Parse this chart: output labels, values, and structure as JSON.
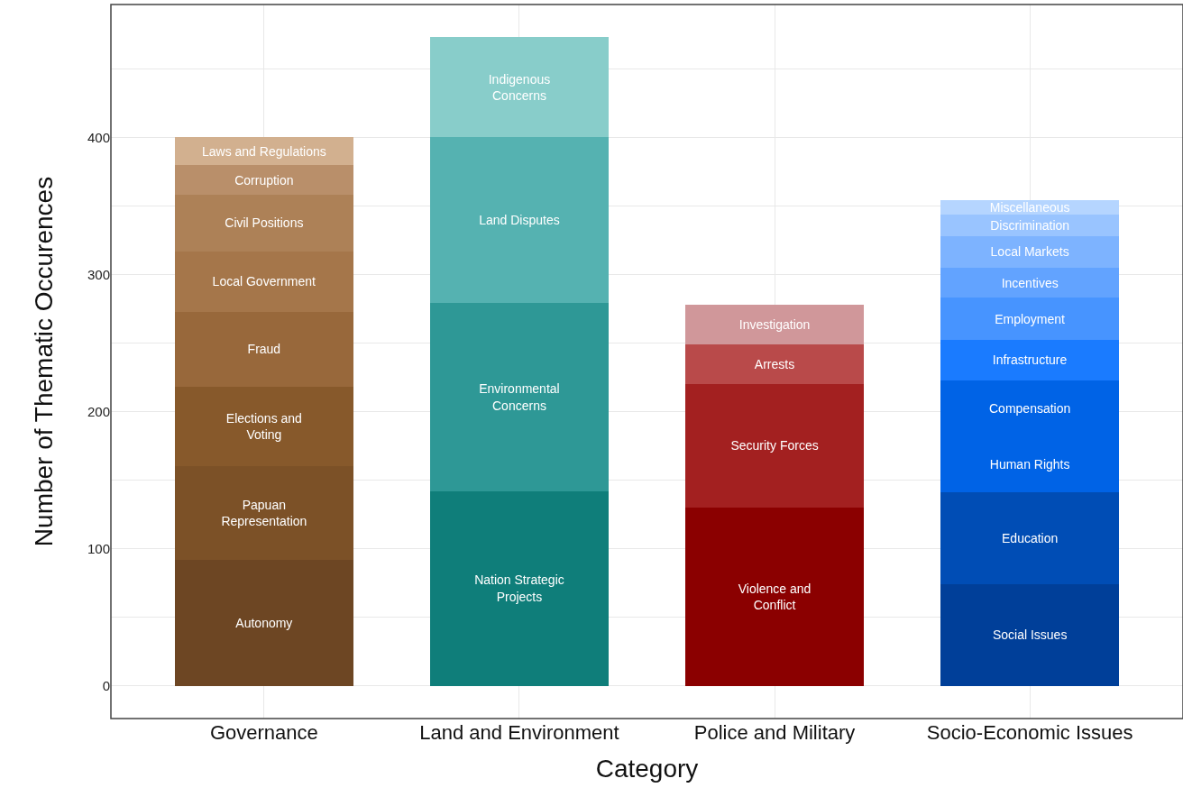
{
  "chart_data": {
    "type": "bar",
    "stacked": true,
    "xlabel": "Category",
    "ylabel": "Number of Thematic Occurences",
    "categories": [
      "Governance",
      "Land and Environment",
      "Police and Military",
      "Socio-Economic Issues"
    ],
    "ylim": [
      -24,
      497
    ],
    "yticks": [
      0,
      {
        "value": 50,
        "label": null
      },
      100,
      {
        "value": 150,
        "label": null
      },
      200,
      {
        "value": 250,
        "label": null
      },
      300,
      {
        "value": 350,
        "label": null
      },
      400,
      {
        "value": 450,
        "label": null
      }
    ],
    "grid": true,
    "legend": false,
    "series": [
      {
        "name": "Autonomy",
        "color": "#6d4623",
        "values": [
          92,
          null,
          null,
          null
        ]
      },
      {
        "name": "Papuan\nRepresentation",
        "color": "#7c5127",
        "values": [
          68,
          null,
          null,
          null
        ]
      },
      {
        "name": "Elections and\nVoting",
        "color": "#87592b",
        "values": [
          58,
          null,
          null,
          null
        ]
      },
      {
        "name": "Fraud",
        "color": "#98683b",
        "values": [
          55,
          null,
          null,
          null
        ]
      },
      {
        "name": "Local Government",
        "color": "#a5764a",
        "values": [
          44,
          null,
          null,
          null
        ]
      },
      {
        "name": "Civil Positions",
        "color": "#ad8157",
        "values": [
          41,
          null,
          null,
          null
        ]
      },
      {
        "name": "Corruption",
        "color": "#b98f6a",
        "values": [
          22,
          null,
          null,
          null
        ]
      },
      {
        "name": "Laws and Regulations",
        "color": "#d2b08f",
        "values": [
          20,
          null,
          null,
          null
        ]
      },
      {
        "name": "Nation Strategic\nProjects",
        "color": "#0f7e7a",
        "values": [
          null,
          142,
          null,
          null
        ]
      },
      {
        "name": "Environmental\nConcerns",
        "color": "#2e9896",
        "values": [
          null,
          137,
          null,
          null
        ]
      },
      {
        "name": "Land Disputes",
        "color": "#55b2b1",
        "values": [
          null,
          121,
          null,
          null
        ]
      },
      {
        "name": "Indigenous\nConcerns",
        "color": "#88cdca",
        "values": [
          null,
          73,
          null,
          null
        ]
      },
      {
        "name": "Violence and\nConflict",
        "color": "#8b0000",
        "values": [
          null,
          null,
          130,
          null
        ]
      },
      {
        "name": "Security Forces",
        "color": "#a32020",
        "values": [
          null,
          null,
          90,
          null
        ]
      },
      {
        "name": "Arrests",
        "color": "#b94a4a",
        "values": [
          null,
          null,
          29,
          null
        ]
      },
      {
        "name": "Investigation",
        "color": "#d0979a",
        "values": [
          null,
          null,
          29,
          null
        ]
      },
      {
        "name": "Social Issues",
        "color": "#003f99",
        "values": [
          null,
          null,
          null,
          74
        ]
      },
      {
        "name": "Education",
        "color": "#004db5",
        "values": [
          null,
          null,
          null,
          67
        ]
      },
      {
        "name": "Human Rights",
        "color": "#0063e6",
        "values": [
          null,
          null,
          null,
          41
        ]
      },
      {
        "name": "Compensation",
        "color": "#0063e6",
        "values": [
          null,
          null,
          null,
          41
        ]
      },
      {
        "name": "Infrastructure",
        "color": "#1a7bff",
        "values": [
          null,
          null,
          null,
          29
        ]
      },
      {
        "name": "Employment",
        "color": "#4794ff",
        "values": [
          null,
          null,
          null,
          31
        ]
      },
      {
        "name": "Incentives",
        "color": "#62a3ff",
        "values": [
          null,
          null,
          null,
          22
        ]
      },
      {
        "name": "Local Markets",
        "color": "#7db3ff",
        "values": [
          null,
          null,
          null,
          23
        ]
      },
      {
        "name": "Discrimination",
        "color": "#99c4ff",
        "values": [
          null,
          null,
          null,
          16
        ]
      },
      {
        "name": "Miscellaneous",
        "color": "#b5d5ff",
        "values": [
          null,
          null,
          null,
          10
        ]
      }
    ]
  }
}
